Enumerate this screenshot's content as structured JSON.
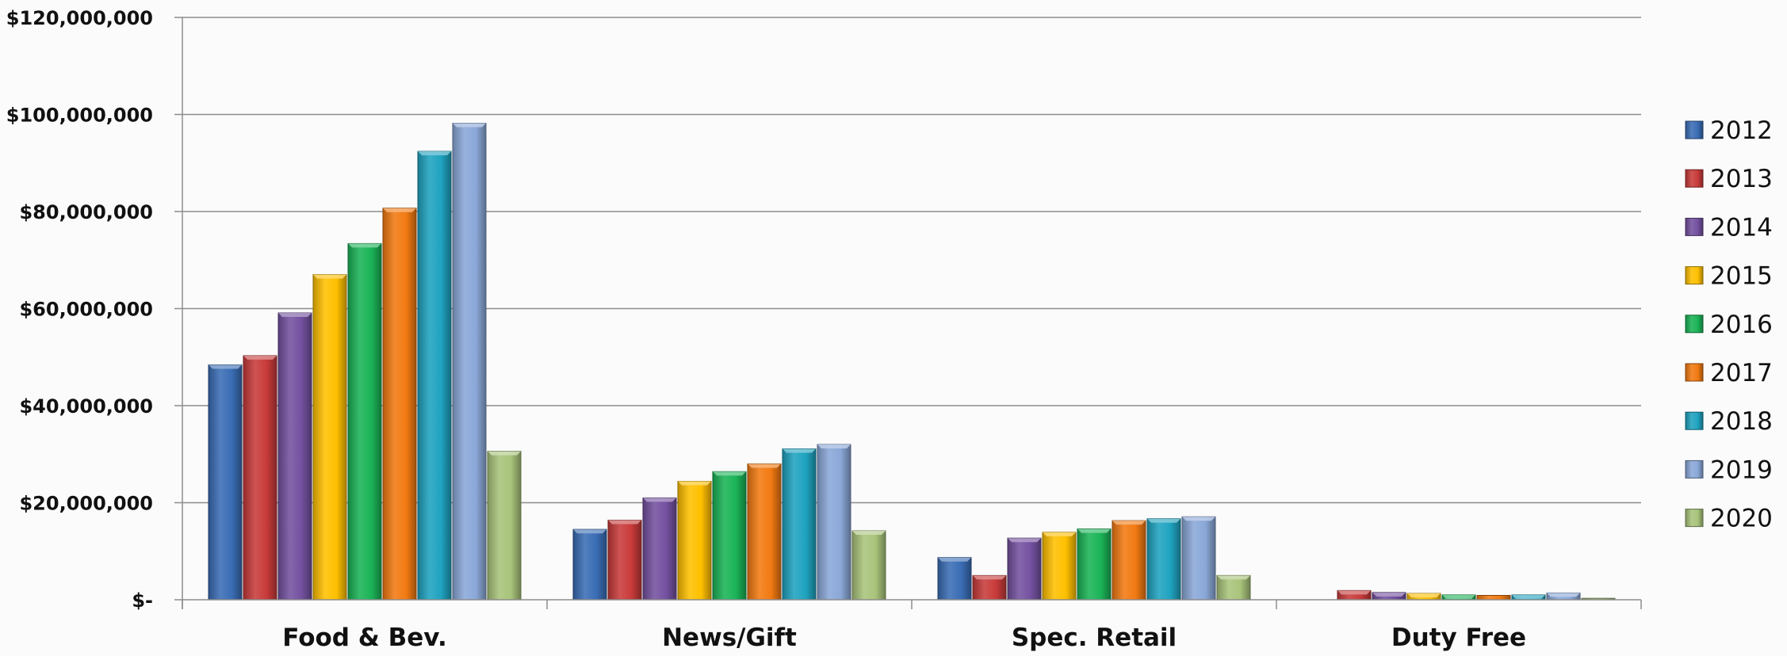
{
  "chart_data": {
    "type": "bar",
    "categories": [
      "Food & Bev.",
      "News/Gift",
      "Spec. Retail",
      "Duty Free"
    ],
    "series": [
      {
        "name": "2012",
        "color": "#3a6db5",
        "values": [
          48400000,
          14500000,
          8700000,
          0
        ]
      },
      {
        "name": "2013",
        "color": "#c83b3a",
        "values": [
          50300000,
          16400000,
          5000000,
          1900000
        ]
      },
      {
        "name": "2014",
        "color": "#7451a0",
        "values": [
          59100000,
          21000000,
          12700000,
          1500000
        ]
      },
      {
        "name": "2015",
        "color": "#ffc000",
        "values": [
          67000000,
          24400000,
          13900000,
          1300000
        ]
      },
      {
        "name": "2016",
        "color": "#1bb457",
        "values": [
          73400000,
          26400000,
          14600000,
          1000000
        ]
      },
      {
        "name": "2017",
        "color": "#f27a12",
        "values": [
          80700000,
          28000000,
          16300000,
          900000
        ]
      },
      {
        "name": "2018",
        "color": "#1fa3c0",
        "values": [
          92400000,
          31100000,
          16700000,
          1000000
        ]
      },
      {
        "name": "2019",
        "color": "#8aa8d8",
        "values": [
          98200000,
          32000000,
          17100000,
          1400000
        ]
      },
      {
        "name": "2020",
        "color": "#a9c47b",
        "values": [
          30600000,
          14200000,
          5000000,
          300000
        ]
      }
    ],
    "yticks": [
      "$-",
      "$20,000,000",
      "$40,000,000",
      "$60,000,000",
      "$80,000,000",
      "$100,000,000",
      "$120,000,000"
    ],
    "ylim": [
      0,
      120000000
    ],
    "grid": true,
    "legend": "right",
    "title": "",
    "xlabel": "",
    "ylabel": ""
  }
}
